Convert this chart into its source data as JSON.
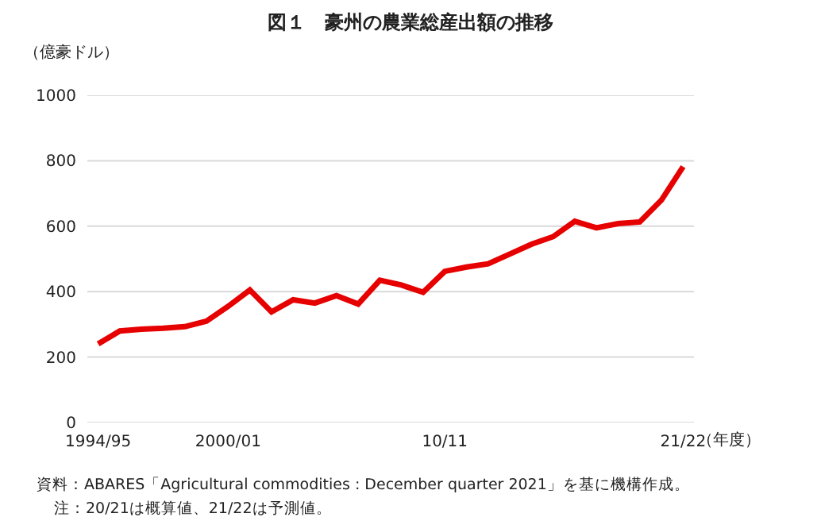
{
  "chart_data": {
    "type": "line",
    "title": "図１　豪州の農業総産出額の推移",
    "ylabel": "（億豪ドル）",
    "xlabel": "（年度）",
    "categories": [
      "1994/95",
      null,
      null,
      null,
      null,
      null,
      "2000/01",
      null,
      null,
      null,
      null,
      null,
      null,
      null,
      null,
      null,
      "10/11",
      null,
      null,
      null,
      null,
      null,
      null,
      null,
      null,
      null,
      null,
      "21/22"
    ],
    "series": [
      {
        "color": "#e60000",
        "values": [
          240,
          280,
          285,
          288,
          293,
          310,
          355,
          405,
          338,
          375,
          365,
          388,
          362,
          435,
          420,
          398,
          462,
          475,
          485,
          515,
          545,
          568,
          615,
          595,
          608,
          613,
          680,
          782
        ]
      }
    ],
    "ylim": [
      0,
      1000
    ],
    "yticks": [
      0,
      200,
      400,
      600,
      800,
      1000
    ],
    "grid": "y",
    "marker": "none",
    "line_style": "solid",
    "annotations": [
      "資料：ABARES「Agricultural commodities : December quarter 2021」を基に機構作成。",
      "注：20/21は概算値、21/22は予測値。"
    ]
  }
}
